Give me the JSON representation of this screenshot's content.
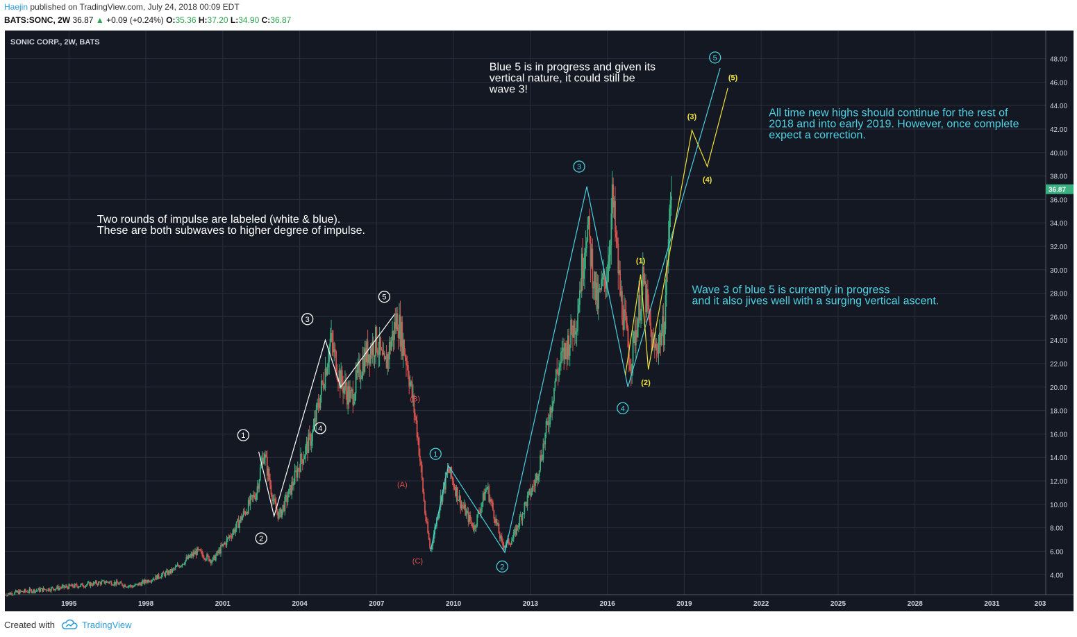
{
  "header": {
    "author": "Haejin",
    "published_text": "published on TradingView.com, July 24, 2018 00:09 EDT",
    "symbol": "BATS:SONC, 2W",
    "last": "36.87",
    "change": "+0.09 (+0.24%)",
    "open_label": "O:",
    "open": "35.36",
    "high_label": "H:",
    "high": "37.20",
    "low_label": "L:",
    "low": "34.90",
    "close_label": "C:",
    "close": "36.87"
  },
  "colors": {
    "background": "#141823",
    "grid": "#2a2e3b",
    "up_candle": "#3bb081",
    "down_candle": "#d9534f",
    "white_wave": "#ffffff",
    "blue_wave": "#4dd0e1",
    "yellow_wave": "#f2e33a",
    "red_wave": "#e05050",
    "price_badge": "#3bb081"
  },
  "chart_data": {
    "type": "candlestick",
    "title": "SONIC CORP., 2W, BATS",
    "xlabel": "",
    "ylabel": "",
    "x_ticks": [
      "1995",
      "1998",
      "2001",
      "2004",
      "2007",
      "2010",
      "2013",
      "2016",
      "2019",
      "2022",
      "2025",
      "2028",
      "2031",
      "203"
    ],
    "y_ticks": [
      "4.00",
      "6.00",
      "8.00",
      "10.00",
      "12.00",
      "14.00",
      "16.00",
      "18.00",
      "20.00",
      "22.00",
      "24.00",
      "26.00",
      "28.00",
      "30.00",
      "32.00",
      "34.00",
      "36.00",
      "38.00",
      "40.00",
      "42.00",
      "44.00",
      "46.00",
      "48.00"
    ],
    "ylim": [
      2.3,
      50.4
    ],
    "xlim": [
      1992.5,
      2033.1
    ],
    "grid": true,
    "last_price": "36.87",
    "price_path": [
      [
        1992.5,
        2.3
      ],
      [
        1993.0,
        2.5
      ],
      [
        1995.5,
        3.1
      ],
      [
        1996.5,
        3.4
      ],
      [
        1997.5,
        3.0
      ],
      [
        1998.3,
        3.7
      ],
      [
        1999.0,
        4.3
      ],
      [
        2000.0,
        6.0
      ],
      [
        2000.6,
        5.2
      ],
      [
        2001.5,
        8.0
      ],
      [
        2002.3,
        11.0
      ],
      [
        2002.6,
        14.5
      ],
      [
        2003.0,
        10.0
      ],
      [
        2003.2,
        9.0
      ],
      [
        2003.6,
        11.0
      ],
      [
        2004.0,
        13.5
      ],
      [
        2004.5,
        16.0
      ],
      [
        2005.0,
        21.5
      ],
      [
        2005.2,
        24.0
      ],
      [
        2005.6,
        20.5
      ],
      [
        2006.0,
        19.0
      ],
      [
        2006.5,
        22.5
      ],
      [
        2007.0,
        24.0
      ],
      [
        2007.3,
        21.5
      ],
      [
        2007.8,
        26.0
      ],
      [
        2008.2,
        22.0
      ],
      [
        2008.6,
        16.0
      ],
      [
        2008.9,
        9.0
      ],
      [
        2009.1,
        6.0
      ],
      [
        2009.5,
        10.5
      ],
      [
        2009.8,
        13.0
      ],
      [
        2010.3,
        10.0
      ],
      [
        2010.8,
        8.0
      ],
      [
        2011.3,
        11.5
      ],
      [
        2011.9,
        6.5
      ],
      [
        2012.3,
        7.0
      ],
      [
        2012.8,
        10.0
      ],
      [
        2013.2,
        12.0
      ],
      [
        2013.6,
        16.0
      ],
      [
        2014.0,
        21.0
      ],
      [
        2014.5,
        24.0
      ],
      [
        2014.8,
        26.0
      ],
      [
        2015.2,
        34.0
      ],
      [
        2015.6,
        27.0
      ],
      [
        2016.0,
        30.0
      ],
      [
        2016.2,
        36.0
      ],
      [
        2016.5,
        28.0
      ],
      [
        2016.9,
        22.0
      ],
      [
        2017.4,
        29.0
      ],
      [
        2017.8,
        23.0
      ],
      [
        2018.2,
        25.0
      ],
      [
        2018.5,
        37.2
      ]
    ],
    "series": [
      {
        "name": "",
        "color": "#ffffff",
        "points": [
          [
            2002.4,
            14.5
          ],
          [
            2003.0,
            9.0
          ],
          [
            2005.0,
            24.0
          ],
          [
            2005.6,
            20.0
          ],
          [
            2007.7,
            26.2
          ]
        ]
      },
      {
        "name": "",
        "color": "#4dd0e1",
        "points": [
          [
            2009.1,
            6.0
          ],
          [
            2009.8,
            13.3
          ],
          [
            2012.0,
            5.9
          ],
          [
            2015.2,
            37.1
          ],
          [
            2016.8,
            20.0
          ],
          [
            2020.4,
            47.2
          ]
        ]
      },
      {
        "name": "",
        "color": "#f2e33a",
        "points": [
          [
            2016.7,
            21.0
          ],
          [
            2017.3,
            29.6
          ],
          [
            2017.6,
            21.5
          ],
          [
            2019.3,
            41.9
          ],
          [
            2019.9,
            38.8
          ],
          [
            2020.7,
            45.5
          ]
        ]
      }
    ],
    "wave_labels": [
      {
        "text": "1",
        "x": 2001.8,
        "y": 15.9,
        "style": "white-circle"
      },
      {
        "text": "2",
        "x": 2002.5,
        "y": 7.1,
        "style": "white-circle"
      },
      {
        "text": "3",
        "x": 2004.3,
        "y": 25.8,
        "style": "white-circle"
      },
      {
        "text": "4",
        "x": 2004.8,
        "y": 16.5,
        "style": "white-circle"
      },
      {
        "text": "5",
        "x": 2007.3,
        "y": 27.7,
        "style": "white-circle"
      },
      {
        "text": "1",
        "x": 2009.3,
        "y": 14.3,
        "style": "blue-circle"
      },
      {
        "text": "2",
        "x": 2011.9,
        "y": 4.7,
        "style": "blue-circle"
      },
      {
        "text": "3",
        "x": 2014.9,
        "y": 38.8,
        "style": "blue-circle"
      },
      {
        "text": "4",
        "x": 2016.6,
        "y": 18.2,
        "style": "blue-circle"
      },
      {
        "text": "5",
        "x": 2020.2,
        "y": 48.1,
        "style": "blue-circle"
      },
      {
        "text": "(1)",
        "x": 2017.3,
        "y": 30.8,
        "style": "yellow"
      },
      {
        "text": "(2)",
        "x": 2017.5,
        "y": 20.4,
        "style": "yellow"
      },
      {
        "text": "(3)",
        "x": 2019.3,
        "y": 43.1,
        "style": "yellow"
      },
      {
        "text": "(4)",
        "x": 2019.9,
        "y": 37.7,
        "style": "yellow"
      },
      {
        "text": "(5)",
        "x": 2020.9,
        "y": 46.4,
        "style": "yellow"
      },
      {
        "text": "(A)",
        "x": 2008.0,
        "y": 11.7,
        "style": "red"
      },
      {
        "text": "(B)",
        "x": 2008.5,
        "y": 19.0,
        "style": "red"
      },
      {
        "text": "(C)",
        "x": 2008.6,
        "y": 5.2,
        "style": "red"
      }
    ],
    "annotations": [
      {
        "lines": [
          "Two rounds of impulse are labeled (white & blue).",
          "These are both subwaves to higher degree of impulse."
        ],
        "x": 1996.1,
        "y": 34.0,
        "color": "#ffffff"
      },
      {
        "lines": [
          "Blue 5 is in progress and given its",
          "vertical nature, it could still be",
          "wave 3!"
        ],
        "x": 2011.4,
        "y": 47.0,
        "color": "#ffffff"
      },
      {
        "lines": [
          "All time new highs should continue for the rest of",
          "2018 and into early 2019. However, once complete",
          "expect a correction."
        ],
        "x": 2022.3,
        "y": 43.1,
        "color": "#4dd0e1"
      },
      {
        "lines": [
          "Wave 3 of blue 5 is currently in progress",
          "and it also jives well with a surging vertical ascent."
        ],
        "x": 2019.3,
        "y": 28.0,
        "color": "#4dd0e1"
      }
    ]
  },
  "footer": {
    "created_with": "Created with",
    "brand": "TradingView"
  }
}
